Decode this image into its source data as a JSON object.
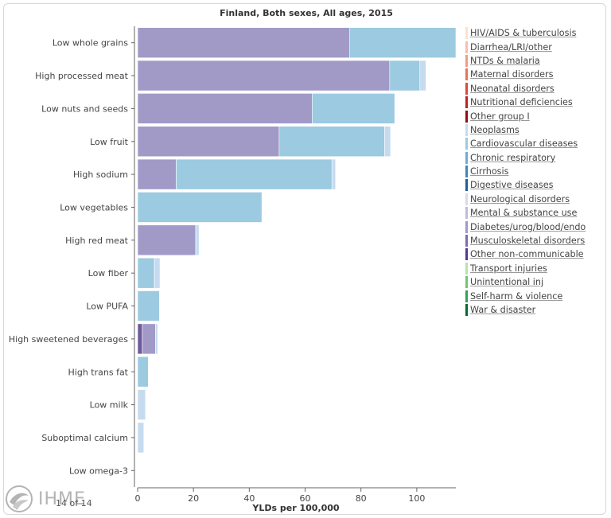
{
  "chart_data": {
    "type": "bar",
    "orientation": "horizontal",
    "stacked": true,
    "title": "Finland, Both sexes, All ages, 2015",
    "xlabel": "YLDs per 100,000",
    "ylabel": "",
    "xlim": [
      0,
      114
    ],
    "xticks": [
      0,
      20,
      40,
      60,
      80,
      100
    ],
    "grid": false,
    "legend_position": "right",
    "categories": [
      "Low whole grains",
      "High processed meat",
      "Low nuts and seeds",
      "Low fruit",
      "High sodium",
      "Low vegetables",
      "High red meat",
      "Low fiber",
      "Low PUFA",
      "High sweetened beverages",
      "High trans fat",
      "Low milk",
      "Suboptimal calcium",
      "Low omega-3"
    ],
    "series": [
      {
        "name": "Other non-communicable",
        "color": "#6f5a9c",
        "values": [
          0,
          0,
          0,
          0,
          0,
          0,
          0,
          0,
          0,
          1.7,
          0,
          0,
          0,
          0
        ]
      },
      {
        "name": "Diabetes/urog/blood/endo",
        "color": "#a19ac7",
        "values": [
          76,
          90.3,
          62.5,
          50.7,
          13.8,
          0,
          20.8,
          0,
          0,
          4.7,
          0,
          0,
          0,
          0
        ]
      },
      {
        "name": "Cardiovascular diseases",
        "color": "#9ccae0",
        "values": [
          38,
          10.8,
          29.6,
          37.8,
          55.8,
          44.5,
          0,
          6,
          7.8,
          0,
          3.8,
          0,
          0,
          0
        ]
      },
      {
        "name": "Neoplasms",
        "color": "#c6dbef",
        "values": [
          0,
          2.2,
          0,
          2.1,
          1.3,
          0,
          1.2,
          2,
          0,
          0.8,
          0,
          2.8,
          2.2,
          0
        ]
      }
    ]
  },
  "legend": [
    {
      "label": "HIV/AIDS & tuberculosis",
      "color": "#fde0d0"
    },
    {
      "label": "Diarrhea/LRI/other",
      "color": "#f8bfa9"
    },
    {
      "label": "NTDs & malaria",
      "color": "#f39b84"
    },
    {
      "label": "Maternal disorders",
      "color": "#ea735b"
    },
    {
      "label": "Neonatal disorders",
      "color": "#d84a3c"
    },
    {
      "label": "Nutritional deficiencies",
      "color": "#bb2323"
    },
    {
      "label": "Other group I",
      "color": "#8e0f12"
    },
    {
      "label": "Neoplasms",
      "color": "#c6dbef"
    },
    {
      "label": "Cardiovascular diseases",
      "color": "#9ecae1"
    },
    {
      "label": "Chronic respiratory",
      "color": "#6baed6"
    },
    {
      "label": "Cirrhosis",
      "color": "#3e86bd"
    },
    {
      "label": "Digestive diseases",
      "color": "#1f5f9f"
    },
    {
      "label": "Neurological disorders",
      "color": "#dadaeb"
    },
    {
      "label": "Mental & substance use",
      "color": "#bcbddc"
    },
    {
      "label": "Diabetes/urog/blood/endo",
      "color": "#9e9ac8"
    },
    {
      "label": "Musculoskeletal disorders",
      "color": "#7a6eb1"
    },
    {
      "label": "Other non-communicable",
      "color": "#54388f"
    },
    {
      "label": "Transport injuries",
      "color": "#b8e3b0"
    },
    {
      "label": "Unintentional inj",
      "color": "#73c476"
    },
    {
      "label": "Self-harm & violence",
      "color": "#31a354"
    },
    {
      "label": "War & disaster",
      "color": "#006d2c"
    }
  ],
  "page_counter": "14 of 14",
  "logo_text": "IHME"
}
